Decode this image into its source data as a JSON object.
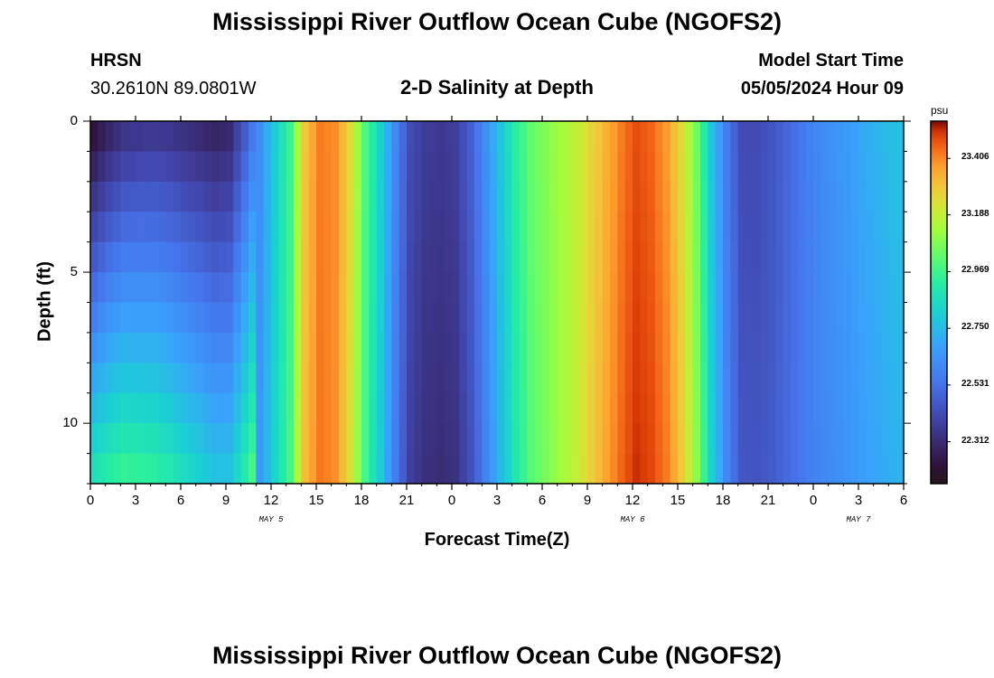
{
  "page": {
    "title_top": "Mississippi River Outflow Ocean Cube (NGOFS2)",
    "title_bottom": "Mississippi River Outflow Ocean Cube (NGOFS2)",
    "station": "HRSN",
    "coords": "30.2610N  89.0801W",
    "subtitle": "2-D Salinity at Depth",
    "model_start_label": "Model Start Time",
    "model_start_value": "05/05/2024 Hour 09"
  },
  "chart_data": {
    "type": "heatmap",
    "title": "2-D Salinity at Depth",
    "xlabel": "Forecast Time(Z)",
    "ylabel": "Depth (ft)",
    "x_range_hours": [
      0,
      54
    ],
    "y_range_ft": [
      0,
      12
    ],
    "x_tick_labels": [
      "0",
      "3",
      "6",
      "9",
      "12",
      "15",
      "18",
      "21",
      "0",
      "3",
      "6",
      "9",
      "12",
      "15",
      "18",
      "21",
      "0",
      "3",
      "6"
    ],
    "y_tick_labels": [
      "0",
      "5",
      "10"
    ],
    "y_tick_values": [
      0,
      5,
      10
    ],
    "date_labels": [
      {
        "text": "MAY 5",
        "hour": 12
      },
      {
        "text": "MAY 6",
        "hour": 36
      },
      {
        "text": "MAY 7",
        "hour": 51
      }
    ],
    "colorbar": {
      "unit": "psu",
      "min": 22.15,
      "max": 23.55,
      "tick_labels": [
        "23.406",
        "23.188",
        "22.969",
        "22.750",
        "22.531",
        "22.312"
      ],
      "tick_values": [
        23.406,
        23.188,
        22.969,
        22.75,
        22.531,
        22.312
      ]
    },
    "surface_salinity_by_hour": [
      [
        0,
        22.2
      ],
      [
        1,
        22.27
      ],
      [
        2,
        22.32
      ],
      [
        3,
        22.33
      ],
      [
        4,
        22.34
      ],
      [
        5,
        22.33
      ],
      [
        6,
        22.31
      ],
      [
        7,
        22.29
      ],
      [
        8,
        22.27
      ],
      [
        9,
        22.29
      ],
      [
        10,
        22.45
      ],
      [
        11,
        22.62
      ],
      [
        12,
        22.8
      ],
      [
        13,
        22.96
      ],
      [
        14,
        23.3
      ],
      [
        15,
        23.42
      ],
      [
        16,
        23.4
      ],
      [
        17,
        23.25
      ],
      [
        18,
        23.0
      ],
      [
        19,
        22.82
      ],
      [
        20,
        22.6
      ],
      [
        21,
        22.42
      ],
      [
        22,
        22.37
      ],
      [
        23,
        22.36
      ],
      [
        24,
        22.38
      ],
      [
        25,
        22.48
      ],
      [
        26,
        22.62
      ],
      [
        27,
        22.78
      ],
      [
        28,
        22.93
      ],
      [
        29,
        23.03
      ],
      [
        30,
        23.08
      ],
      [
        31,
        23.13
      ],
      [
        32,
        23.18
      ],
      [
        33,
        23.26
      ],
      [
        34,
        23.34
      ],
      [
        35,
        23.42
      ],
      [
        36,
        23.48
      ],
      [
        37,
        23.45
      ],
      [
        38,
        23.38
      ],
      [
        39,
        23.25
      ],
      [
        40,
        23.05
      ],
      [
        41,
        22.78
      ],
      [
        42,
        22.56
      ],
      [
        43,
        22.42
      ],
      [
        44,
        22.42
      ],
      [
        45,
        22.45
      ],
      [
        46,
        22.5
      ],
      [
        47,
        22.55
      ],
      [
        48,
        22.6
      ],
      [
        49,
        22.63
      ],
      [
        50,
        22.66
      ],
      [
        51,
        22.7
      ],
      [
        52,
        22.73
      ],
      [
        53,
        22.76
      ],
      [
        54,
        22.78
      ]
    ],
    "early_hours_depth_increase_psu_per_ft": 0.045,
    "early_hours_cutoff": 11
  }
}
